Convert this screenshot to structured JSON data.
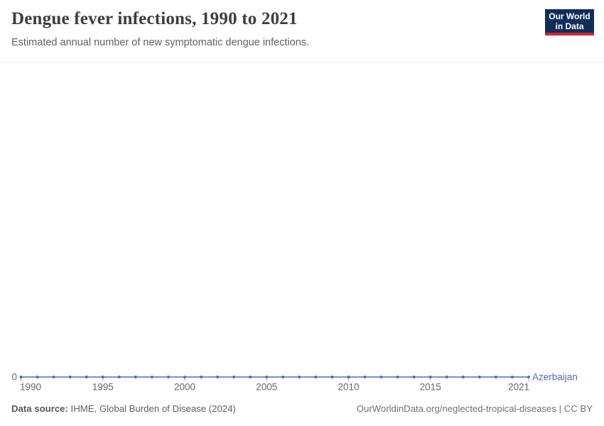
{
  "header": {
    "title": "Dengue fever infections, 1990 to 2021",
    "subtitle": "Estimated annual number of new symptomatic dengue infections.",
    "logo": {
      "line1": "Our World",
      "line2": "in Data",
      "bg_color": "#102d5a",
      "bar_color": "#d2232f"
    }
  },
  "chart_data": {
    "type": "line",
    "title": "Dengue fever infections, 1990 to 2021",
    "subtitle": "Estimated annual number of new symptomatic dengue infections.",
    "x": [
      1990,
      1991,
      1992,
      1993,
      1994,
      1995,
      1996,
      1997,
      1998,
      1999,
      2000,
      2001,
      2002,
      2003,
      2004,
      2005,
      2006,
      2007,
      2008,
      2009,
      2010,
      2011,
      2012,
      2013,
      2014,
      2015,
      2016,
      2017,
      2018,
      2019,
      2020,
      2021
    ],
    "series": [
      {
        "name": "Azerbaijan",
        "color": "#4d6db8",
        "values": [
          0,
          0,
          0,
          0,
          0,
          0,
          0,
          0,
          0,
          0,
          0,
          0,
          0,
          0,
          0,
          0,
          0,
          0,
          0,
          0,
          0,
          0,
          0,
          0,
          0,
          0,
          0,
          0,
          0,
          0,
          0,
          0
        ]
      }
    ],
    "x_ticks": [
      1990,
      1995,
      2000,
      2005,
      2010,
      2015,
      2021
    ],
    "y_ticks": [
      0
    ],
    "xlim": [
      1990,
      2021
    ],
    "ylim": [
      0,
      0
    ],
    "grid": false,
    "legend_position": "end-of-line",
    "axis_text_color": "#666666",
    "tick_mark_color": "#a9a9a9"
  },
  "footer": {
    "source_label": "Data source:",
    "source_text": " IHME, Global Burden of Disease (2024)",
    "link_text": "OurWorldinData.org/neglected-tropical-diseases | CC BY"
  }
}
